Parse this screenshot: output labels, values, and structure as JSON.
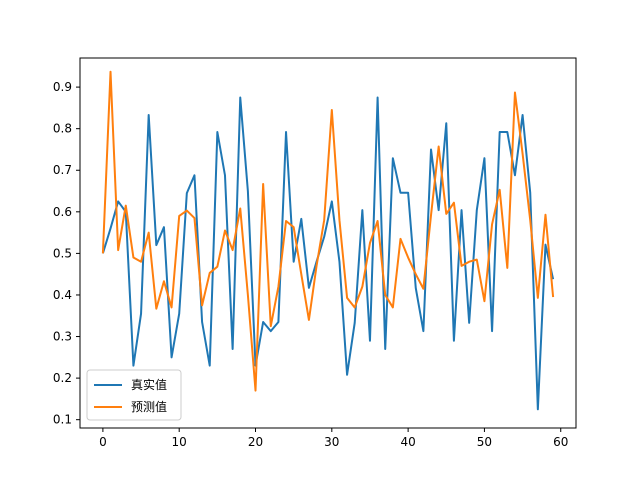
{
  "chart_data": {
    "type": "line",
    "title": "",
    "xlabel": "",
    "ylabel": "",
    "xlim": [
      -3,
      62
    ],
    "ylim": [
      0.08,
      0.97
    ],
    "x_ticks": [
      0,
      10,
      20,
      30,
      40,
      50,
      60
    ],
    "y_ticks": [
      0.1,
      0.2,
      0.3,
      0.4,
      0.5,
      0.6,
      0.7,
      0.8,
      0.9
    ],
    "grid": false,
    "legend_position": "lower-left",
    "x": [
      0,
      1,
      2,
      3,
      4,
      5,
      6,
      7,
      8,
      9,
      10,
      11,
      12,
      13,
      14,
      15,
      16,
      17,
      18,
      19,
      20,
      21,
      22,
      23,
      24,
      25,
      26,
      27,
      28,
      29,
      30,
      31,
      32,
      33,
      34,
      35,
      36,
      37,
      38,
      39,
      40,
      41,
      42,
      43,
      44,
      45,
      46,
      47,
      48,
      49,
      50,
      51,
      52,
      53,
      54,
      55,
      56,
      57,
      58,
      59
    ],
    "series": [
      {
        "name": "真实值",
        "color": "#1f77b4",
        "values": [
          0.5,
          0.56,
          0.625,
          0.6,
          0.23,
          0.355,
          0.833,
          0.52,
          0.563,
          0.25,
          0.355,
          0.645,
          0.688,
          0.335,
          0.23,
          0.792,
          0.688,
          0.27,
          0.875,
          0.65,
          0.23,
          0.335,
          0.313,
          0.335,
          0.792,
          0.48,
          0.583,
          0.417,
          0.48,
          0.54,
          0.625,
          0.48,
          0.208,
          0.333,
          0.604,
          0.29,
          0.875,
          0.27,
          0.729,
          0.646,
          0.646,
          0.417,
          0.313,
          0.75,
          0.604,
          0.813,
          0.29,
          0.604,
          0.333,
          0.604,
          0.729,
          0.313,
          0.792,
          0.792,
          0.688,
          0.833,
          0.646,
          0.125,
          0.521,
          0.438
        ]
      },
      {
        "name": "预测值",
        "color": "#ff7f0e",
        "values": [
          0.5,
          0.937,
          0.508,
          0.615,
          0.49,
          0.48,
          0.55,
          0.367,
          0.433,
          0.37,
          0.59,
          0.603,
          0.585,
          0.375,
          0.453,
          0.468,
          0.555,
          0.508,
          0.608,
          0.4,
          0.17,
          0.667,
          0.325,
          0.42,
          0.578,
          0.563,
          0.45,
          0.34,
          0.47,
          0.58,
          0.845,
          0.58,
          0.393,
          0.37,
          0.42,
          0.525,
          0.578,
          0.4,
          0.37,
          0.535,
          0.49,
          0.45,
          0.415,
          0.592,
          0.757,
          0.595,
          0.622,
          0.47,
          0.48,
          0.485,
          0.385,
          0.57,
          0.653,
          0.465,
          0.887,
          0.74,
          0.58,
          0.393,
          0.593,
          0.395
        ]
      }
    ]
  }
}
